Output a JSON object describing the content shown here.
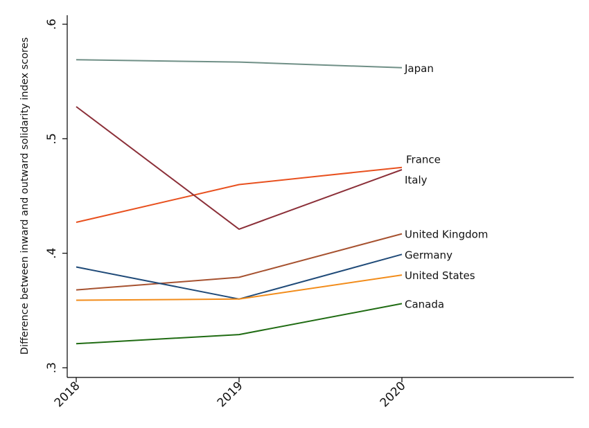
{
  "chart_data": {
    "type": "line",
    "title": "",
    "xlabel": "",
    "ylabel": "Difference between inward and outward solidarity index scores",
    "x": [
      2018,
      2019,
      2020
    ],
    "x_tick_labels": [
      "2018",
      "2019",
      "2020"
    ],
    "xlim": [
      2018,
      2021
    ],
    "ylim": [
      0.3,
      0.6
    ],
    "y_ticks": [
      0.3,
      0.4,
      0.5,
      0.6
    ],
    "y_tick_labels": [
      ".3",
      ".4",
      ".5",
      ".6"
    ],
    "grid": false,
    "legend": "labels at line ends",
    "series": [
      {
        "name": "Japan",
        "values": [
          0.569,
          0.567,
          0.562
        ],
        "color": "#6f8f86"
      },
      {
        "name": "France",
        "values": [
          0.427,
          0.46,
          0.475
        ],
        "color": "#e8501e"
      },
      {
        "name": "Italy",
        "values": [
          0.528,
          0.421,
          0.473
        ],
        "color": "#8b2f38"
      },
      {
        "name": "United Kingdom",
        "values": [
          0.368,
          0.379,
          0.417
        ],
        "color": "#a6512f"
      },
      {
        "name": "Germany",
        "values": [
          0.388,
          0.36,
          0.399
        ],
        "color": "#1f4a78"
      },
      {
        "name": "United States",
        "values": [
          0.359,
          0.36,
          0.381
        ],
        "color": "#f28c1a"
      },
      {
        "name": "Canada",
        "values": [
          0.321,
          0.329,
          0.356
        ],
        "color": "#1f6b12"
      }
    ]
  }
}
